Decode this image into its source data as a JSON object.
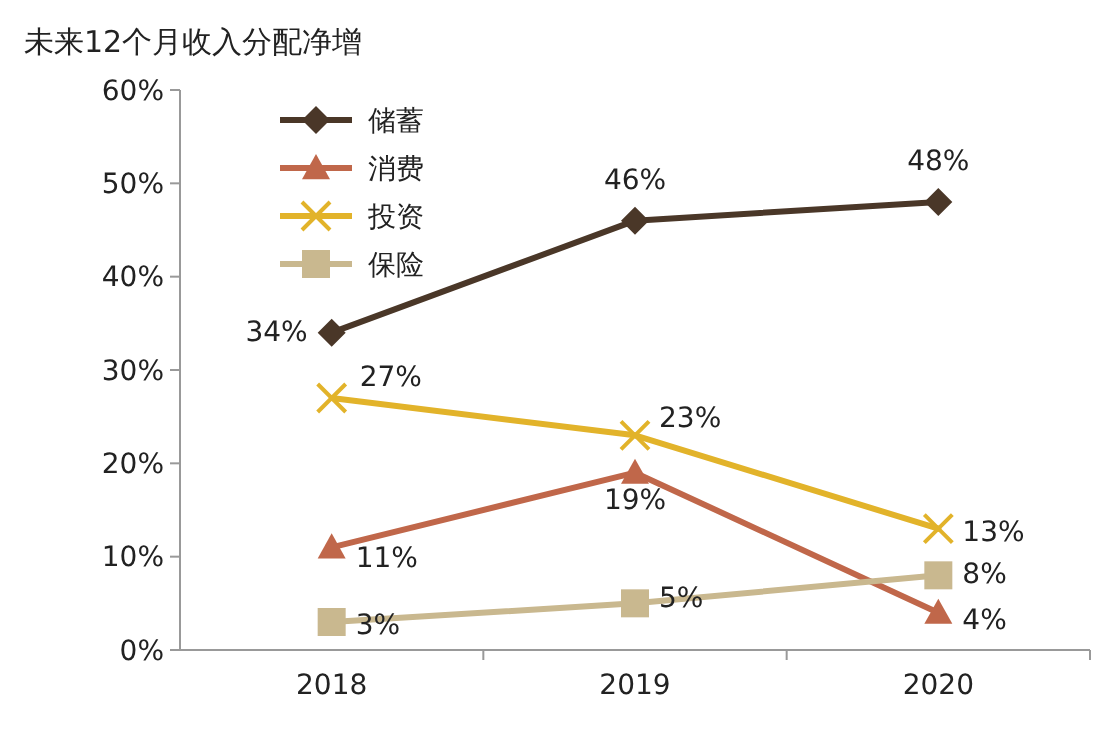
{
  "chart_data": {
    "type": "line",
    "title": "未来12个月收入分配净增",
    "categories": [
      "2018",
      "2019",
      "2020"
    ],
    "ylim": [
      0,
      60
    ],
    "yticks": [
      {
        "value": 0,
        "label": "0%"
      },
      {
        "value": 10,
        "label": "10%"
      },
      {
        "value": 20,
        "label": "20%"
      },
      {
        "value": 30,
        "label": "30%"
      },
      {
        "value": 40,
        "label": "40%"
      },
      {
        "value": 50,
        "label": "50%"
      },
      {
        "value": 60,
        "label": "60%"
      }
    ],
    "grid": false,
    "legend": "top left",
    "line_style": "solid",
    "series": [
      {
        "name": "储蓄",
        "color": "#4a3728",
        "marker": "diamond",
        "values": [
          34,
          46,
          48
        ],
        "value_labels": [
          "34%",
          "46%",
          "48%"
        ]
      },
      {
        "name": "消费",
        "color": "#c0674a",
        "marker": "triangle",
        "values": [
          11,
          19,
          4
        ],
        "value_labels": [
          "11%",
          "19%",
          "4%"
        ]
      },
      {
        "name": "投资",
        "color": "#e2b32a",
        "marker": "cross",
        "values": [
          27,
          23,
          13
        ],
        "value_labels": [
          "27%",
          "23%",
          "13%"
        ]
      },
      {
        "name": "保险",
        "color": "#c9b88f",
        "marker": "square",
        "values": [
          3,
          5,
          8
        ],
        "value_labels": [
          "3%",
          "5%",
          "8%"
        ]
      }
    ]
  }
}
